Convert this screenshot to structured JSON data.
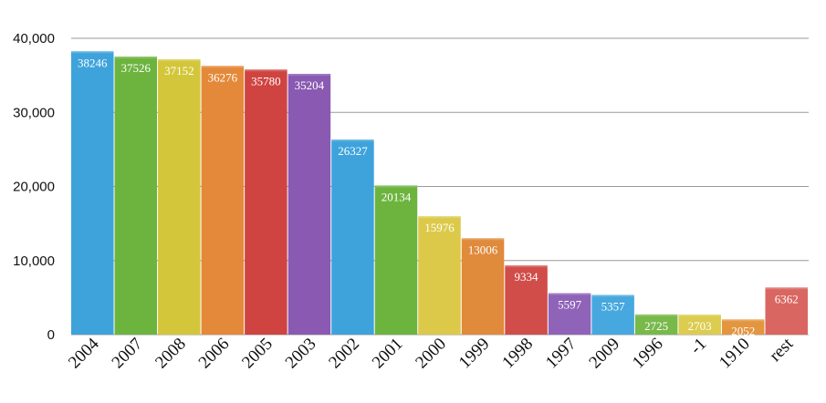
{
  "chart_data": {
    "type": "bar",
    "categories": [
      "2004",
      "2007",
      "2008",
      "2006",
      "2005",
      "2003",
      "2002",
      "2001",
      "2000",
      "1999",
      "1998",
      "1997",
      "2009",
      "1996",
      "-1",
      "1910",
      "rest"
    ],
    "values": [
      38246,
      37526,
      37152,
      36276,
      35780,
      35204,
      26327,
      20134,
      15976,
      13006,
      9334,
      5597,
      5357,
      2725,
      2703,
      2052,
      6362
    ],
    "data_labels": [
      "38246",
      "37526",
      "37152",
      "36276",
      "35780",
      "35204",
      "26327",
      "20134",
      "15976",
      "13006",
      "9334",
      "5597",
      "5357",
      "2725",
      "2703",
      "2052",
      "6362"
    ],
    "y_ticks": [
      0,
      10000,
      20000,
      30000,
      40000
    ],
    "y_tick_labels": [
      "0",
      "10,000",
      "20,000",
      "30,000",
      "40,000"
    ],
    "ylim": [
      0,
      40000
    ],
    "grid": true,
    "legend": "none",
    "title": "",
    "xlabel": "",
    "ylabel": "",
    "colors": [
      "#3ea3db",
      "#6db43f",
      "#d4c63a",
      "#e4893a",
      "#cf4440",
      "#8a5ab2",
      "#3ea3db",
      "#6db43f",
      "#dcc94a",
      "#e08a3c",
      "#d04d4a",
      "#8f63b8",
      "#46a8de",
      "#78b94a",
      "#dccc4f",
      "#e3953f",
      "#d96660"
    ]
  }
}
